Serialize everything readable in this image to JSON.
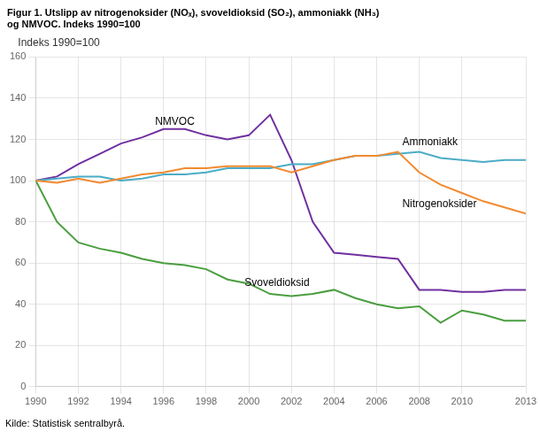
{
  "chart_data": {
    "type": "line",
    "title": [
      "Figur 1. Utslipp av nitrogenoksider (NOₓ), svoveldioksid (SO₂), ammoniakk (NH₃)",
      "og NMVOC. Indeks 1990=100"
    ],
    "ylabel": "Indeks 1990=100",
    "source": "Kilde: Statistisk sentralbyrå.",
    "x": [
      1990,
      1991,
      1992,
      1993,
      1994,
      1995,
      1996,
      1997,
      1998,
      1999,
      2000,
      2001,
      2002,
      2003,
      2004,
      2005,
      2006,
      2007,
      2008,
      2009,
      2010,
      2011,
      2012,
      2013
    ],
    "series": [
      {
        "color": "#f28a30",
        "values": [
          100,
          99,
          101,
          99,
          101,
          103,
          104,
          106,
          106,
          107,
          107,
          107,
          104,
          107,
          110,
          112,
          112,
          114,
          104,
          98,
          94,
          90,
          87,
          84
        ]
      },
      {
        "color": "#4a9e3f",
        "values": [
          100,
          80,
          70,
          67,
          65,
          62,
          60,
          59,
          57,
          52,
          50,
          45,
          44,
          45,
          47,
          43,
          40,
          38,
          39,
          31,
          37,
          35,
          32,
          32
        ]
      },
      {
        "color": "#4bacc6",
        "values": [
          100,
          101,
          102,
          102,
          100,
          101,
          103,
          103,
          104,
          106,
          106,
          106,
          108,
          108,
          110,
          112,
          112,
          113,
          114,
          111,
          110,
          109,
          110,
          110
        ]
      },
      {
        "color": "#7030a0",
        "values": [
          100,
          102,
          108,
          113,
          118,
          121,
          125,
          125,
          122,
          120,
          122,
          132,
          110,
          80,
          65,
          64,
          63,
          62,
          47,
          47,
          46,
          46,
          47,
          47
        ]
      }
    ],
    "annotations": [
      {
        "text": "NMVOC",
        "x": 1995.6,
        "y": 127
      },
      {
        "text": "Ammoniakk",
        "x": 2007.2,
        "y": 117
      },
      {
        "text": "Nitrogenoksider",
        "x": 2007.2,
        "y": 87
      },
      {
        "text": "Svoveldioksid",
        "x": 1999.8,
        "y": 49
      }
    ],
    "xlim": [
      1990,
      2013
    ],
    "xticks": [
      1990,
      1992,
      1994,
      1996,
      1998,
      2000,
      2002,
      2004,
      2006,
      2008,
      2010,
      2013
    ],
    "ylim": [
      0,
      160
    ],
    "yticks": [
      0,
      20,
      40,
      60,
      80,
      100,
      120,
      140,
      160
    ],
    "grid": true
  }
}
